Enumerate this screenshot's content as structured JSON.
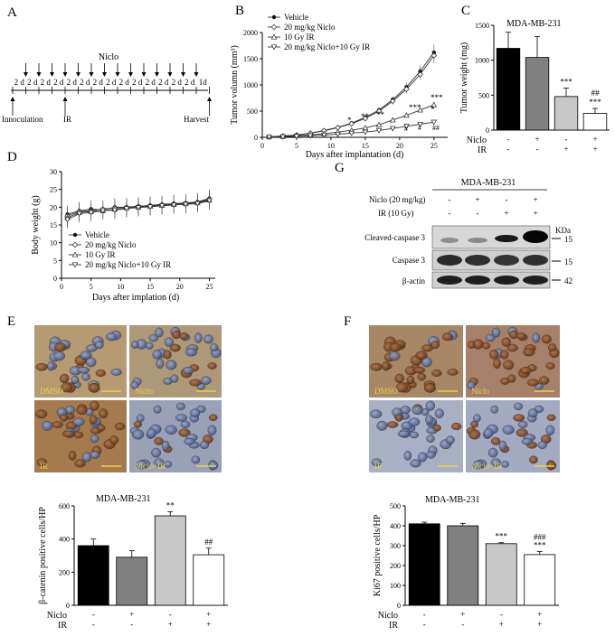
{
  "panels": {
    "A": "A",
    "B": "B",
    "C": "C",
    "D": "D",
    "E": "E",
    "F": "F",
    "G": "G"
  },
  "panelA": {
    "drug_label": "Niclo",
    "intervals": [
      "2 d",
      "2 d",
      "2 d",
      "2 d",
      "2 d",
      "2 d",
      "2 d",
      "2 d",
      "2 d",
      "2 d",
      "2 d",
      "2 d",
      "2 d",
      "2 d",
      "1d"
    ],
    "inoculation": "Innoculation",
    "ir": "IR",
    "harvest": "Harvest"
  },
  "panelB": {
    "ylabel": "Tumor volumn (mm³)",
    "xlabel": "Days after implantation (d)",
    "legend": [
      "Vehicle",
      "20 mg/kg Niclo",
      "10 Gy IR",
      "20 mg/kg Niclo+10 Gy IR"
    ],
    "stars": [
      "***",
      "***",
      "**",
      "**",
      "*",
      "*"
    ],
    "hashes": [
      "##",
      "#",
      "#"
    ]
  },
  "panelC": {
    "title": "MDA-MB-231",
    "ylabel": "Tumor weight (mg)",
    "row1": "Niclo",
    "row2": "IR",
    "sig1": "***",
    "sig2a": "##",
    "sig2b": "***"
  },
  "panelD": {
    "ylabel": "Body weight (g)",
    "xlabel": "Days after implation (d)",
    "legend": [
      "Vehicle",
      "20 mg/kg Niclo",
      "10 Gy IR",
      "20 mg/kg Niclo+10 Gy IR"
    ]
  },
  "panelG": {
    "title": "MDA-MB-231",
    "niclo_label": "Niclo (20 mg/kg)",
    "ir_label": "IR (10 Gy)",
    "kda": "KDa",
    "rows": [
      {
        "name": "Cleaved-caspase 3",
        "kda": "15"
      },
      {
        "name": "Caspase 3",
        "kda": "15"
      },
      {
        "name": "β-actin",
        "kda": "42"
      }
    ]
  },
  "panelE": {
    "image_labels": [
      "DMSO",
      "Niclo",
      "IR",
      "Niclo+IR"
    ],
    "title": "MDA-MB-231",
    "ylabel": "β-catenin positive cells/HP",
    "row1": "Niclo",
    "row2": "IR",
    "sig1": "**",
    "sig2": "##"
  },
  "panelF": {
    "image_labels": [
      "DMSO",
      "Niclo",
      "IR",
      "Niclo+IR"
    ],
    "title": "MDA-MB-231",
    "ylabel": "Ki67 positive cells/HP",
    "row1": "Niclo",
    "row2": "IR",
    "sig1": "***",
    "sig2a": "###",
    "sig2b": "***"
  },
  "signs": {
    "minus": "-",
    "plus": "+"
  },
  "chart_data": [
    {
      "type": "line",
      "title": "",
      "xlabel": "Days after implantation (d)",
      "ylabel": "Tumor volumn (mm³)",
      "xlim": [
        0,
        27
      ],
      "ylim": [
        0,
        2000
      ],
      "xticks": [
        0,
        5,
        10,
        15,
        20,
        25
      ],
      "yticks": [
        0,
        500,
        1000,
        1500,
        2000
      ],
      "x": [
        1,
        3,
        5,
        7,
        9,
        11,
        13,
        15,
        17,
        19,
        21,
        23,
        25
      ],
      "series": [
        {
          "name": "Vehicle",
          "values": [
            10,
            25,
            45,
            80,
            130,
            190,
            270,
            380,
            520,
            720,
            960,
            1260,
            1620
          ]
        },
        {
          "name": "20 mg/kg Niclo",
          "values": [
            10,
            24,
            43,
            78,
            125,
            185,
            260,
            360,
            500,
            690,
            920,
            1200,
            1560
          ]
        },
        {
          "name": "10 Gy IR",
          "values": [
            8,
            15,
            28,
            45,
            70,
            100,
            135,
            180,
            240,
            330,
            420,
            520,
            620
          ]
        },
        {
          "name": "20 mg/kg Niclo+10 Gy IR",
          "values": [
            8,
            12,
            20,
            30,
            45,
            60,
            80,
            100,
            130,
            170,
            210,
            250,
            290
          ]
        }
      ]
    },
    {
      "type": "bar",
      "title": "MDA-MB-231",
      "ylabel": "Tumor weight (mg)",
      "ylim": [
        0,
        1500
      ],
      "yticks": [
        0,
        500,
        1000,
        1500
      ],
      "categories": [
        "Vehicle",
        "Niclo",
        "IR",
        "Niclo+IR"
      ],
      "values": [
        1170,
        1040,
        480,
        240
      ],
      "errors": [
        230,
        300,
        120,
        70
      ],
      "colors": [
        "#000000",
        "#808080",
        "#c8c8c8",
        "#ffffff"
      ]
    },
    {
      "type": "line",
      "title": "",
      "xlabel": "Days after implation (d)",
      "ylabel": "Body weight (g)",
      "xlim": [
        0,
        26
      ],
      "ylim": [
        0,
        30
      ],
      "xticks": [
        0,
        5,
        10,
        15,
        20,
        25
      ],
      "yticks": [
        0,
        5,
        10,
        15,
        20,
        25,
        30
      ],
      "x": [
        1,
        3,
        5,
        7,
        9,
        11,
        13,
        15,
        17,
        19,
        21,
        23,
        25
      ],
      "series": [
        {
          "name": "Vehicle",
          "values": [
            18,
            19,
            19.5,
            19.2,
            20,
            20,
            20.2,
            20.5,
            20.8,
            21,
            21.2,
            21.5,
            22.5
          ]
        },
        {
          "name": "20 mg/kg Niclo",
          "values": [
            17.5,
            18.8,
            19,
            19.5,
            19.8,
            20,
            20.3,
            20.4,
            20.6,
            21,
            21,
            21.3,
            22.3
          ]
        },
        {
          "name": "10 Gy IR",
          "values": [
            17,
            18.5,
            18.8,
            19,
            19.4,
            19.8,
            20,
            20.3,
            20.5,
            20.8,
            21,
            21.2,
            22
          ]
        },
        {
          "name": "20 mg/kg Niclo+10 Gy IR",
          "values": [
            16.5,
            18.2,
            18.5,
            19,
            19.2,
            19.6,
            19.9,
            20.1,
            20.4,
            20.6,
            20.8,
            21,
            21.8
          ]
        }
      ]
    },
    {
      "type": "bar",
      "title": "MDA-MB-231",
      "ylabel": "β-catenin positive cells/HP",
      "ylim": [
        0,
        600
      ],
      "yticks": [
        0,
        200,
        400,
        600
      ],
      "categories": [
        "Vehicle",
        "Niclo",
        "IR",
        "Niclo+IR"
      ],
      "values": [
        360,
        290,
        540,
        305
      ],
      "errors": [
        40,
        40,
        25,
        40
      ],
      "colors": [
        "#000000",
        "#808080",
        "#c8c8c8",
        "#ffffff"
      ]
    },
    {
      "type": "bar",
      "title": "MDA-MB-231",
      "ylabel": "Ki67 positive cells/HP",
      "ylim": [
        0,
        500
      ],
      "yticks": [
        0,
        100,
        200,
        300,
        400,
        500
      ],
      "categories": [
        "Vehicle",
        "Niclo",
        "IR",
        "Niclo+IR"
      ],
      "values": [
        410,
        400,
        310,
        255
      ],
      "errors": [
        8,
        12,
        5,
        15
      ],
      "colors": [
        "#000000",
        "#808080",
        "#c8c8c8",
        "#ffffff"
      ]
    }
  ]
}
